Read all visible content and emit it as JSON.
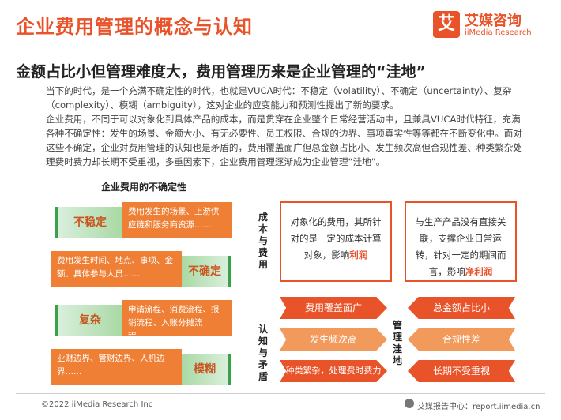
{
  "header": {
    "title": "企业费用管理的概念与认知",
    "logo_mark": "艾",
    "logo_cn": "艾媒咨询",
    "logo_en": "iiMedia Research"
  },
  "subtitle": "金额占比小但管理难度大，费用管理历来是企业管理的“洼地”",
  "paragraphs": {
    "p1": "当下的时代，是一个充满不确定性的时代，也就是VUCA时代：不稳定（volatility）、不确定（uncertainty）、复杂（complexity）、模糊（ambiguity），这对企业的应变能力和预测性提出了新的要求。",
    "p2": "企业费用，不同于可以对象化到具体产品的成本，而是贯穿在企业整个日常经营活动中，且兼具VUCA时代特征，充满各种不确定性：发生的场景、金额大小、有无必要性、员工权限、合规的边界、事项真实性等等都在不断变化中。面对这些不确定，企业对费用管理的认知也是矛盾的，费用覆盖面广但总金额占比小、发生频次高但合规性差、种类繁杂处理费时费力却长期不受重视，多重因素下，企业费用管理逐渐成为企业管理“洼地”。"
  },
  "uncertainty": {
    "title": "企业费用的不确定性",
    "rows": [
      {
        "label": "不稳定",
        "desc": "费用发生的场景、上游供应链和服务商资源……"
      },
      {
        "label": "不确定",
        "desc": "费用发生时间、地点、事项、金额、具体参与人员……"
      },
      {
        "label": "复杂",
        "desc": "申请流程、消费流程、报销流程、入账分摊流程……"
      },
      {
        "label": "模糊",
        "desc": "业财边界、管财边界、人机边界……"
      }
    ]
  },
  "cost_vs_expense": {
    "tag": "成本与费用",
    "left_box": {
      "text": "对象化的费用，其所针对的是一定的成本计算对象，影响",
      "highlight": "利润"
    },
    "right_box": {
      "text": "与生产产品没有直接关联，支撑企业日常运转，针对一定的期间而言，影响",
      "highlight": "净利润"
    }
  },
  "cognition": {
    "tag": "认知与矛盾",
    "center": "管理洼地",
    "left": [
      "费用覆盖面广",
      "发生频次高",
      "种类繁杂，处理费时费力"
    ],
    "right": [
      "总金额占比小",
      "合规性差",
      "长期不受重视"
    ]
  },
  "footer": {
    "copyright": "©2022  iiMedia Research  Inc",
    "source": "艾媒报告中心：report.iimedia.cn"
  },
  "colors": {
    "accent": "#e8532a",
    "green": "#3aa04a",
    "orange": "#ee7f35"
  }
}
